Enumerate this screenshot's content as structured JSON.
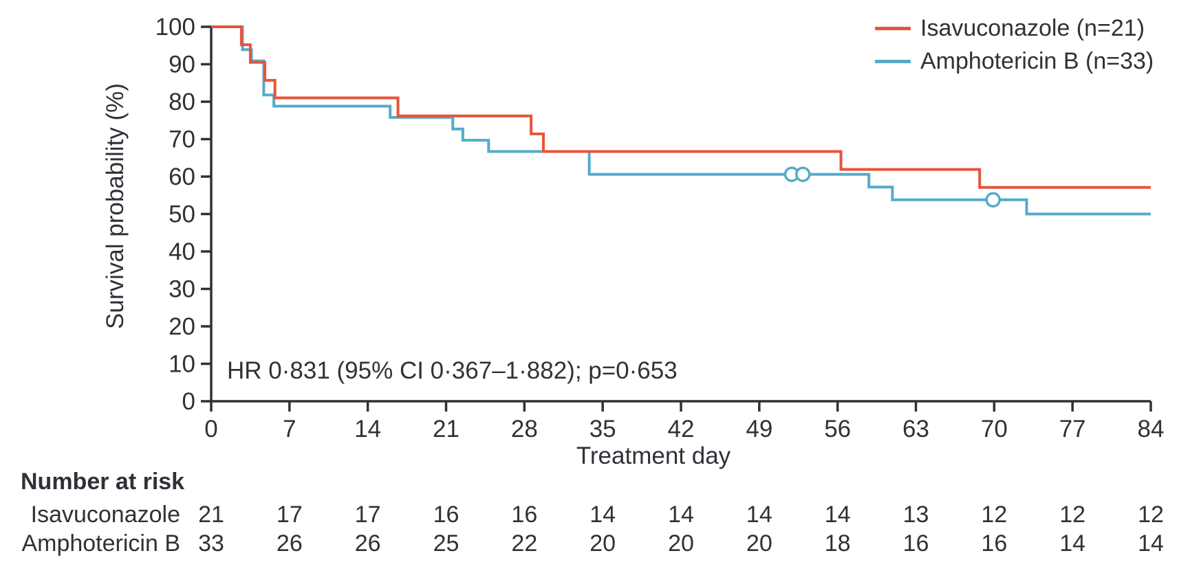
{
  "colors": {
    "text": "#2e3238",
    "axis": "#2e3238",
    "isavuconazole": "#e8543a",
    "amphotericin": "#55abc9",
    "background": "#ffffff"
  },
  "chart_data": {
    "type": "line",
    "subtype": "kaplan-meier-step",
    "title": "",
    "xlabel": "Treatment day",
    "ylabel": "Survival probability (%)",
    "xlim": [
      0,
      84
    ],
    "ylim": [
      0,
      100
    ],
    "xticks": [
      0,
      7,
      14,
      21,
      28,
      35,
      42,
      49,
      56,
      63,
      70,
      77,
      84
    ],
    "yticks": [
      0,
      10,
      20,
      30,
      40,
      50,
      60,
      70,
      80,
      90,
      100
    ],
    "grid": false,
    "legend_position": "top-right",
    "annotation": "HR 0·831 (95% CI 0·367–1·882); p=0·653",
    "legend": [
      {
        "label": "Isavuconazole (n=21)",
        "color": "#e8543a"
      },
      {
        "label": "Amphotericin B (n=33)",
        "color": "#55abc9"
      }
    ],
    "series": [
      {
        "name": "Isavuconazole (n=21)",
        "color": "#e8543a",
        "end_day": 84,
        "steps": [
          [
            0,
            100
          ],
          [
            2.7,
            95.2
          ],
          [
            3.5,
            90.5
          ],
          [
            4.8,
            85.7
          ],
          [
            5.7,
            81.0
          ],
          [
            16.7,
            76.2
          ],
          [
            28.6,
            71.4
          ],
          [
            29.7,
            66.7
          ],
          [
            56.3,
            61.9
          ],
          [
            68.7,
            57.1
          ]
        ],
        "censor_marks": []
      },
      {
        "name": "Amphotericin B (n=33)",
        "color": "#55abc9",
        "end_day": 84,
        "steps": [
          [
            0,
            100
          ],
          [
            2.8,
            93.9
          ],
          [
            3.6,
            90.9
          ],
          [
            4.7,
            81.8
          ],
          [
            5.6,
            78.8
          ],
          [
            16.0,
            75.8
          ],
          [
            21.6,
            72.7
          ],
          [
            22.5,
            69.7
          ],
          [
            24.8,
            66.7
          ],
          [
            33.8,
            60.6
          ],
          [
            58.8,
            57.2
          ],
          [
            60.9,
            53.8
          ],
          [
            72.9,
            50.0
          ]
        ],
        "censor_marks": [
          [
            51.9,
            60.6
          ],
          [
            52.9,
            60.6
          ],
          [
            69.9,
            53.8
          ]
        ]
      }
    ],
    "number_at_risk": {
      "title": "Number at risk",
      "days": [
        0,
        7,
        14,
        21,
        28,
        35,
        42,
        49,
        56,
        63,
        70,
        77,
        84
      ],
      "rows": [
        {
          "label": "Isavuconazole",
          "values": [
            21,
            17,
            17,
            16,
            16,
            14,
            14,
            14,
            14,
            13,
            12,
            12,
            12
          ]
        },
        {
          "label": "Amphotericin B",
          "values": [
            33,
            26,
            26,
            25,
            22,
            20,
            20,
            20,
            18,
            16,
            16,
            14,
            14
          ]
        }
      ]
    }
  }
}
